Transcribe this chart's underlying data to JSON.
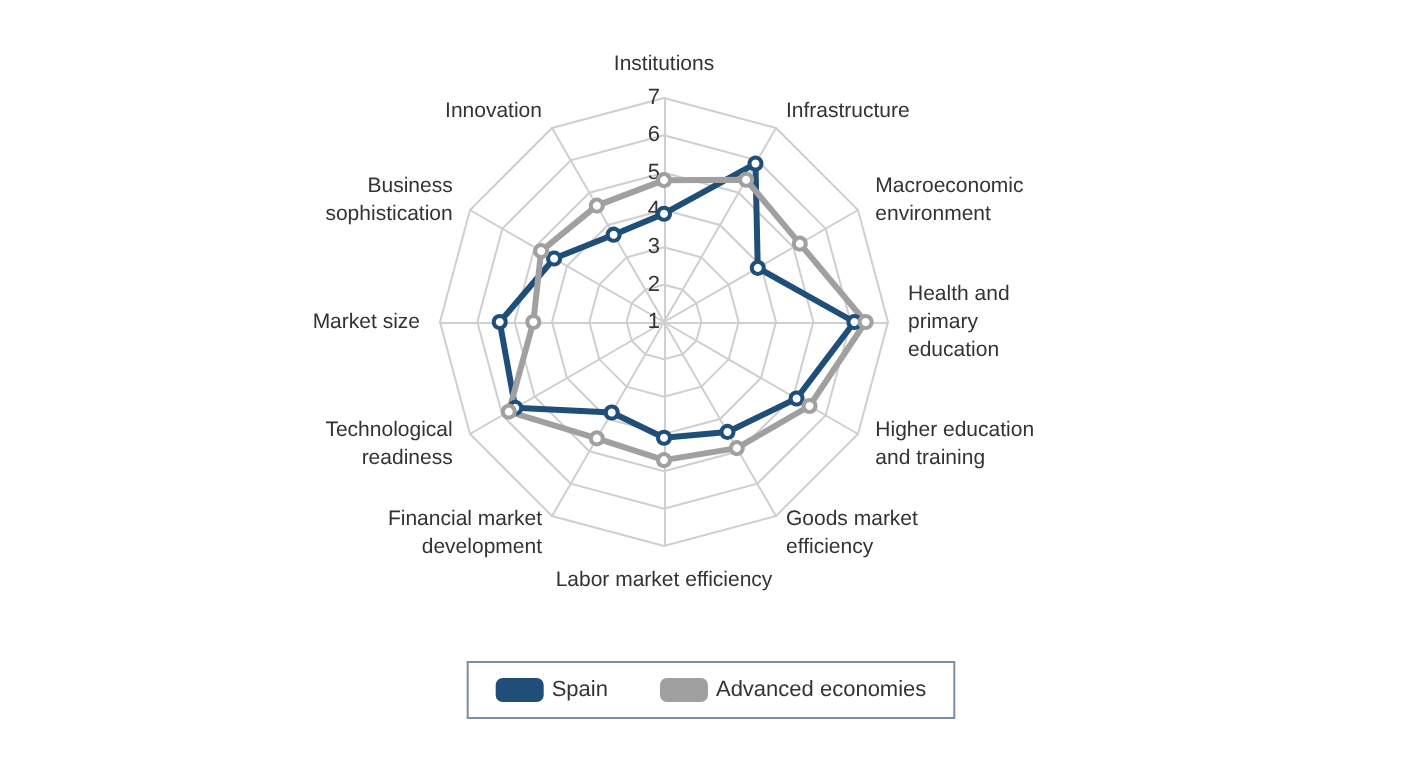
{
  "chart_data": {
    "type": "radar",
    "categories": [
      "Institutions",
      "Infrastructure",
      "Macroeconomic\nenvironment",
      "Health and\nprimary\neducation",
      "Higher education\nand training",
      "Goods market\nefficiency",
      "Labor market efficiency",
      "Financial market\ndevelopment",
      "Technological\nreadiness",
      "Market size",
      "Business\nsophistication",
      "Innovation"
    ],
    "series": [
      {
        "name": "Spain",
        "color": "#1f4e79",
        "values": [
          3.9,
          5.9,
          3.9,
          6.1,
          5.1,
          4.4,
          4.1,
          3.8,
          5.6,
          5.4,
          4.4,
          3.7
        ]
      },
      {
        "name": "Advanced economies",
        "color": "#a0a0a0",
        "values": [
          4.8,
          5.4,
          5.2,
          6.4,
          5.5,
          4.9,
          4.7,
          4.6,
          5.8,
          4.5,
          4.8,
          4.6
        ]
      }
    ],
    "ylim": [
      1,
      7
    ],
    "yticks": [
      1,
      2,
      3,
      4,
      5,
      6,
      7
    ],
    "grid": true,
    "legend": "bottom",
    "marker": "circle",
    "line_style": "solid"
  }
}
